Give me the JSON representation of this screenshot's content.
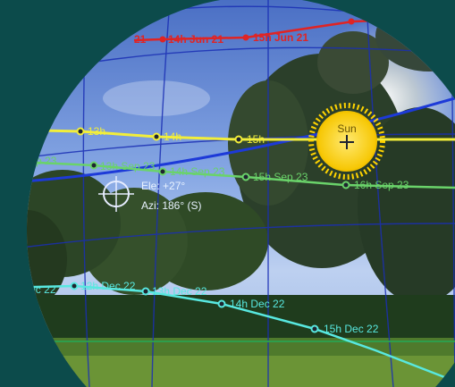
{
  "colors": {
    "frame": "#0c4b4b",
    "sky_top": "#4f74c6",
    "sky_mid": "#8fb0e8",
    "horizon_line": "#2e9e4c",
    "grid": "#1b2fb4",
    "path_jun21": "#e02424",
    "path_today": "#f2ee3a",
    "path_sep23": "#6ad36a",
    "path_dec22": "#58e8e0",
    "sun": "#ffd400"
  },
  "paths": {
    "jun21": {
      "labels": [
        "14h Jun 21",
        "15h Jun 21"
      ]
    },
    "today": {
      "labels": [
        "13h",
        "14h",
        "15h"
      ]
    },
    "sep23": {
      "labels": [
        "12h Sep 23",
        "13h Sep 23",
        "14h Sep 23",
        "15h Sep 23",
        "16h Sep 23"
      ]
    },
    "dec22": {
      "labels": [
        "11h Dec 22",
        "12h Dec 22",
        "13h Dec 22",
        "14h Dec 22",
        "15h Dec 22"
      ]
    }
  },
  "sun": {
    "label": "Sun"
  },
  "crosshair": {
    "elevation_text": "Ele: +27°",
    "azimuth_text": "Azi: 186° (S)"
  }
}
